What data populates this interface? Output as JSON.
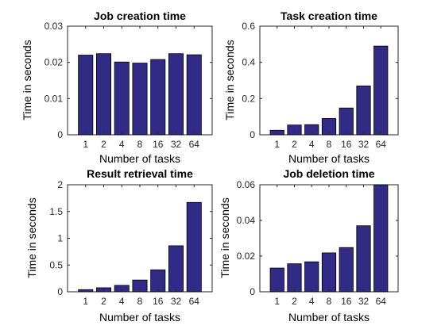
{
  "chart_data": [
    {
      "type": "bar",
      "title": "Job creation time",
      "xlabel": "Number of tasks",
      "ylabel": "Time in seconds",
      "categories": [
        "1",
        "2",
        "4",
        "8",
        "16",
        "32",
        "64"
      ],
      "values": [
        0.022,
        0.0224,
        0.0201,
        0.0198,
        0.0208,
        0.0224,
        0.0221
      ],
      "ylim": [
        0,
        0.03
      ],
      "yticks": [
        "0",
        "0.01",
        "0.02",
        "0.03"
      ],
      "grid": false,
      "bar_color": "#312b86"
    },
    {
      "type": "bar",
      "title": "Task creation time",
      "xlabel": "Number of tasks",
      "ylabel": "Time in seconds",
      "categories": [
        "1",
        "2",
        "4",
        "8",
        "16",
        "32",
        "64"
      ],
      "values": [
        0.025,
        0.054,
        0.056,
        0.09,
        0.148,
        0.27,
        0.49
      ],
      "ylim": [
        0,
        0.6
      ],
      "yticks": [
        "0",
        "0.2",
        "0.4",
        "0.6"
      ],
      "grid": false,
      "bar_color": "#312b86"
    },
    {
      "type": "bar",
      "title": "Result retrieval time",
      "xlabel": "Number of tasks",
      "ylabel": "Time in seconds",
      "categories": [
        "1",
        "2",
        "4",
        "8",
        "16",
        "32",
        "64"
      ],
      "values": [
        0.04,
        0.075,
        0.12,
        0.22,
        0.41,
        0.86,
        1.67
      ],
      "ylim": [
        0,
        2
      ],
      "yticks": [
        "0",
        "0.5",
        "1",
        "1.5",
        "2"
      ],
      "grid": false,
      "bar_color": "#312b86"
    },
    {
      "type": "bar",
      "title": "Job deletion time",
      "xlabel": "Number of tasks",
      "ylabel": "Time in seconds",
      "categories": [
        "1",
        "2",
        "4",
        "8",
        "16",
        "32",
        "64"
      ],
      "values": [
        0.0133,
        0.0157,
        0.0168,
        0.0218,
        0.0248,
        0.037,
        0.06
      ],
      "ylim": [
        0,
        0.06
      ],
      "yticks": [
        "0",
        "0.02",
        "0.04",
        "0.06"
      ],
      "grid": false,
      "bar_color": "#312b86"
    }
  ]
}
